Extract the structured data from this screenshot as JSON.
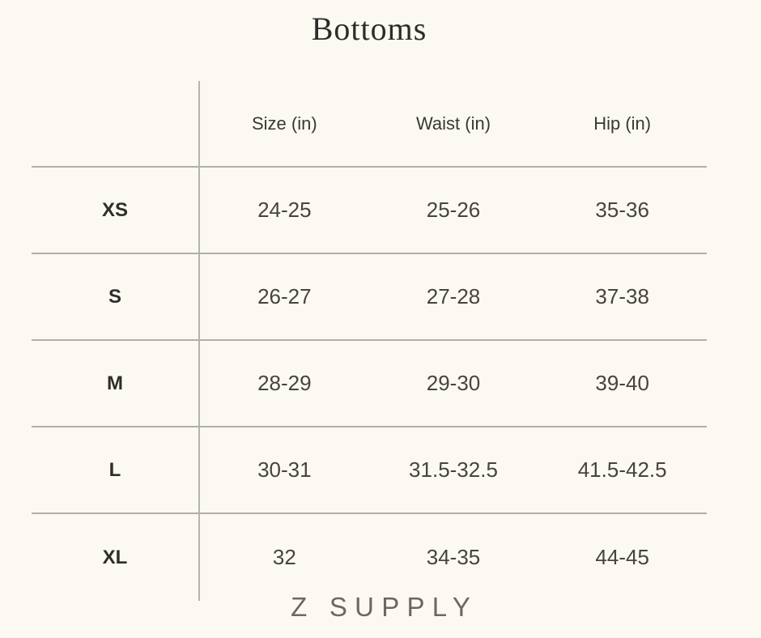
{
  "title": "Bottoms",
  "brand": "Z SUPPLY",
  "colors": {
    "background": "#fcf9f3",
    "rule_line": "#b2afa9",
    "title_text": "#2e2c29",
    "data_text": "#474440"
  },
  "table": {
    "columns": [
      "Size (in)",
      "Waist (in)",
      "Hip (in)"
    ],
    "rows": [
      {
        "label": "XS",
        "size": "24-25",
        "waist": "25-26",
        "hip": "35-36"
      },
      {
        "label": "S",
        "size": "26-27",
        "waist": "27-28",
        "hip": "37-38"
      },
      {
        "label": "M",
        "size": "28-29",
        "waist": "29-30",
        "hip": "39-40"
      },
      {
        "label": "L",
        "size": "30-31",
        "waist": "31.5-32.5",
        "hip": "41.5-42.5"
      },
      {
        "label": "XL",
        "size": "32",
        "waist": "34-35",
        "hip": "44-45"
      }
    ]
  }
}
